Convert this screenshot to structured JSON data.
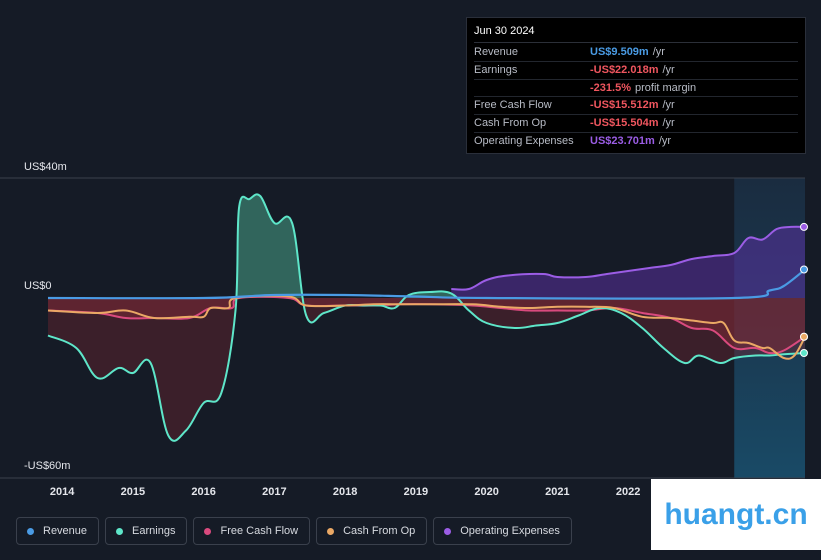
{
  "tooltip": {
    "date": "Jun 30 2024",
    "rows": [
      {
        "label": "Revenue",
        "value": "US$9.509m",
        "unit": "/yr",
        "color": "#4a9be4"
      },
      {
        "label": "Earnings",
        "value": "-US$22.018m",
        "unit": "/yr",
        "color": "#f0565f"
      },
      {
        "label": "",
        "value": "-231.5%",
        "unit": "profit margin",
        "color": "#f0565f"
      },
      {
        "label": "Free Cash Flow",
        "value": "-US$15.512m",
        "unit": "/yr",
        "color": "#f0565f"
      },
      {
        "label": "Cash From Op",
        "value": "-US$15.504m",
        "unit": "/yr",
        "color": "#f0565f"
      },
      {
        "label": "Operating Expenses",
        "value": "US$23.701m",
        "unit": "/yr",
        "color": "#9b5de5"
      }
    ]
  },
  "legend": [
    {
      "label": "Revenue",
      "color": "#4a9be4"
    },
    {
      "label": "Earnings",
      "color": "#5ee6c9"
    },
    {
      "label": "Free Cash Flow",
      "color": "#d94a7e"
    },
    {
      "label": "Cash From Op",
      "color": "#eaa865"
    },
    {
      "label": "Operating Expenses",
      "color": "#9b5de5"
    }
  ],
  "watermark": "huangt.cn",
  "chart_data": {
    "type": "area",
    "y_axis_labels": {
      "top": "US$40m",
      "zero": "US$0",
      "bottom": "-US$60m"
    },
    "ylim": [
      -60,
      40
    ],
    "x_ticks": [
      "2014",
      "2015",
      "2016",
      "2017",
      "2018",
      "2019",
      "2020",
      "2021",
      "2022"
    ],
    "xlim": [
      2013.8,
      2024.5
    ],
    "highlight_from": 2023.5,
    "series": [
      {
        "name": "Revenue",
        "color": "#4a9be4",
        "points": [
          [
            2013.8,
            0
          ],
          [
            2016.0,
            0
          ],
          [
            2017.0,
            1.0
          ],
          [
            2018.0,
            1.0
          ],
          [
            2019.0,
            0.5
          ],
          [
            2020.0,
            0
          ],
          [
            2023.5,
            0
          ],
          [
            2024.0,
            2.5
          ],
          [
            2024.2,
            4.0
          ],
          [
            2024.5,
            9.5
          ]
        ]
      },
      {
        "name": "Earnings",
        "color": "#5ee6c9",
        "points": [
          [
            2013.8,
            -15
          ],
          [
            2014.2,
            -20
          ],
          [
            2014.5,
            -32
          ],
          [
            2014.8,
            -28
          ],
          [
            2015.0,
            -30
          ],
          [
            2015.25,
            -26
          ],
          [
            2015.5,
            -55
          ],
          [
            2015.75,
            -53
          ],
          [
            2016.0,
            -42
          ],
          [
            2016.25,
            -38
          ],
          [
            2016.45,
            -5
          ],
          [
            2016.5,
            30
          ],
          [
            2016.65,
            33
          ],
          [
            2016.8,
            34
          ],
          [
            2017.0,
            25
          ],
          [
            2017.25,
            25
          ],
          [
            2017.45,
            -7
          ],
          [
            2017.7,
            -6
          ],
          [
            2018.0,
            -3
          ],
          [
            2018.25,
            -3
          ],
          [
            2018.5,
            -3
          ],
          [
            2018.7,
            -4
          ],
          [
            2018.9,
            1
          ],
          [
            2019.2,
            2
          ],
          [
            2019.5,
            1.5
          ],
          [
            2019.75,
            -5
          ],
          [
            2020.0,
            -10
          ],
          [
            2020.4,
            -12
          ],
          [
            2020.7,
            -11
          ],
          [
            2021.0,
            -10
          ],
          [
            2021.3,
            -7
          ],
          [
            2021.6,
            -4
          ],
          [
            2021.9,
            -6
          ],
          [
            2022.2,
            -12
          ],
          [
            2022.5,
            -20
          ],
          [
            2022.8,
            -26
          ],
          [
            2023.0,
            -23
          ],
          [
            2023.3,
            -26
          ],
          [
            2023.5,
            -24
          ],
          [
            2023.8,
            -23
          ],
          [
            2024.0,
            -23
          ],
          [
            2024.2,
            -22.5
          ],
          [
            2024.5,
            -22
          ]
        ]
      },
      {
        "name": "Free Cash Flow",
        "color": "#d94a7e",
        "points": [
          [
            2013.8,
            -5
          ],
          [
            2014.5,
            -6
          ],
          [
            2014.9,
            -8
          ],
          [
            2015.3,
            -8
          ],
          [
            2015.8,
            -8
          ],
          [
            2016.1,
            -4
          ],
          [
            2016.4,
            -4
          ],
          [
            2016.5,
            0
          ],
          [
            2017.2,
            0
          ],
          [
            2017.45,
            -3
          ],
          [
            2018.0,
            -3
          ],
          [
            2018.4,
            -3
          ],
          [
            2018.8,
            -2.5
          ],
          [
            2019.2,
            -2.5
          ],
          [
            2019.8,
            -3
          ],
          [
            2020.2,
            -4
          ],
          [
            2020.6,
            -5
          ],
          [
            2021.0,
            -5
          ],
          [
            2021.4,
            -5
          ],
          [
            2021.8,
            -4
          ],
          [
            2022.2,
            -6
          ],
          [
            2022.6,
            -8
          ],
          [
            2022.9,
            -12
          ],
          [
            2023.2,
            -13
          ],
          [
            2023.5,
            -20
          ],
          [
            2023.8,
            -20
          ],
          [
            2024.0,
            -22
          ],
          [
            2024.2,
            -21
          ],
          [
            2024.5,
            -15.5
          ]
        ]
      },
      {
        "name": "Cash From Op",
        "color": "#eaa865",
        "points": [
          [
            2013.8,
            -5
          ],
          [
            2014.5,
            -6
          ],
          [
            2014.9,
            -5
          ],
          [
            2015.3,
            -8
          ],
          [
            2015.8,
            -7.5
          ],
          [
            2016.0,
            -7.5
          ],
          [
            2016.1,
            -4
          ],
          [
            2016.35,
            -4
          ],
          [
            2016.45,
            0
          ],
          [
            2017.2,
            0.5
          ],
          [
            2017.45,
            -3
          ],
          [
            2018.0,
            -3
          ],
          [
            2018.4,
            -2.5
          ],
          [
            2018.8,
            -2.5
          ],
          [
            2019.2,
            -2.5
          ],
          [
            2019.8,
            -2.5
          ],
          [
            2020.2,
            -3.5
          ],
          [
            2020.6,
            -4
          ],
          [
            2021.0,
            -3.5
          ],
          [
            2021.4,
            -3.5
          ],
          [
            2021.8,
            -4
          ],
          [
            2022.2,
            -7.5
          ],
          [
            2022.6,
            -8
          ],
          [
            2022.9,
            -9
          ],
          [
            2023.2,
            -10
          ],
          [
            2023.35,
            -10
          ],
          [
            2023.5,
            -17
          ],
          [
            2023.7,
            -18
          ],
          [
            2023.9,
            -20
          ],
          [
            2024.0,
            -20
          ],
          [
            2024.2,
            -24
          ],
          [
            2024.35,
            -23
          ],
          [
            2024.5,
            -15.5
          ]
        ]
      },
      {
        "name": "Operating Expenses",
        "color": "#9b5de5",
        "points": [
          [
            2019.5,
            3
          ],
          [
            2019.75,
            3
          ],
          [
            2020.0,
            6
          ],
          [
            2020.3,
            7.5
          ],
          [
            2020.8,
            8
          ],
          [
            2021.0,
            7
          ],
          [
            2021.4,
            7
          ],
          [
            2021.7,
            8
          ],
          [
            2022.0,
            9
          ],
          [
            2022.3,
            10
          ],
          [
            2022.6,
            11
          ],
          [
            2022.9,
            13
          ],
          [
            2023.2,
            14
          ],
          [
            2023.5,
            15
          ],
          [
            2023.7,
            20
          ],
          [
            2023.9,
            19.5
          ],
          [
            2024.1,
            23
          ],
          [
            2024.3,
            23.7
          ],
          [
            2024.5,
            23.7
          ]
        ]
      }
    ]
  }
}
